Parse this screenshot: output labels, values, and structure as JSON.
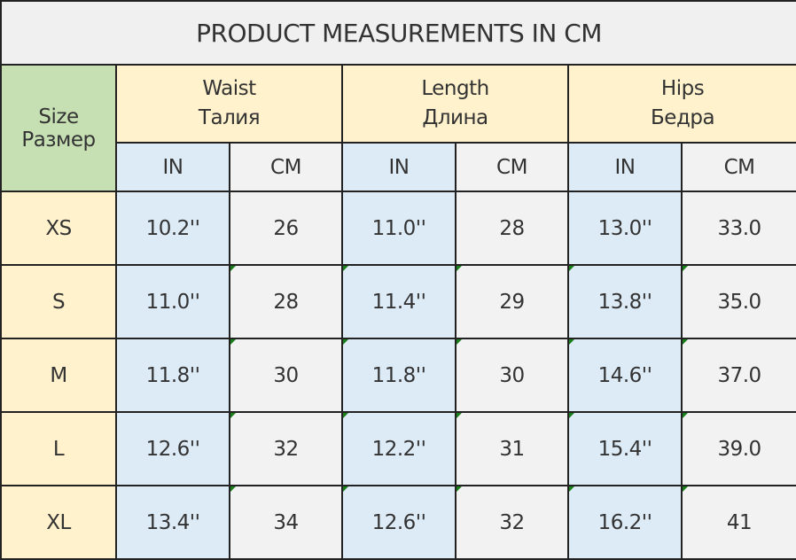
{
  "title": "PRODUCT MEASUREMENTS IN CM",
  "size_header": {
    "en": "Size",
    "ru": "Размер"
  },
  "groups": [
    {
      "en": "Waist",
      "ru": "Талия"
    },
    {
      "en": "Length",
      "ru": "Длина"
    },
    {
      "en": "Hips",
      "ru": "Бедра"
    }
  ],
  "units": [
    "IN",
    "CM",
    "IN",
    "CM",
    "IN",
    "CM"
  ],
  "rows": [
    {
      "size": "XS",
      "values": [
        "10.2''",
        "26",
        "11.0''",
        "28",
        "13.0''",
        "33.0"
      ]
    },
    {
      "size": "S",
      "values": [
        "11.0''",
        "28",
        "11.4''",
        "29",
        "13.8''",
        "35.0"
      ]
    },
    {
      "size": "M",
      "values": [
        "11.8''",
        "30",
        "11.8''",
        "30",
        "14.6''",
        "37.0"
      ]
    },
    {
      "size": "L",
      "values": [
        "12.6''",
        "32",
        "12.2''",
        "31",
        "15.4''",
        "39.0"
      ]
    },
    {
      "size": "XL",
      "values": [
        "13.4''",
        "34",
        "12.6''",
        "32",
        "16.2''",
        "41"
      ]
    }
  ],
  "colors": {
    "size_header": "#c6e0b4",
    "group_header": "#fff2cc",
    "inch_column": "#ddebf7",
    "cm_column": "#f2f2f2",
    "title": "#f0f0f0"
  }
}
